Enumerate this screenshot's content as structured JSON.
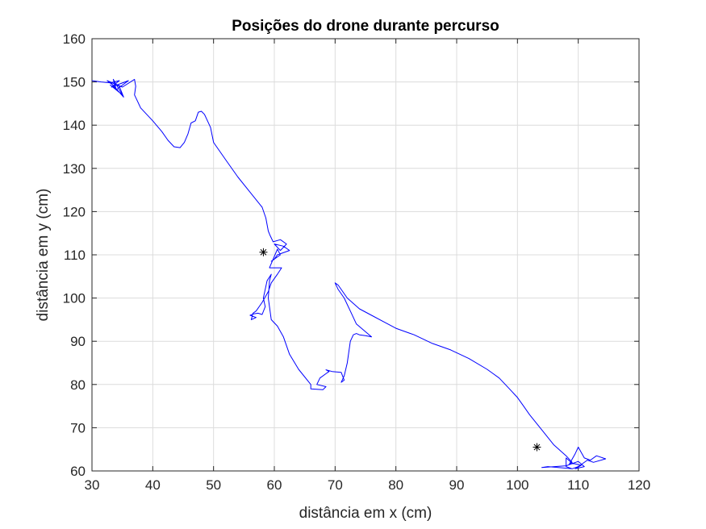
{
  "chart_data": {
    "type": "line",
    "title": "Posições do drone durante percurso",
    "xlabel": "distância em x (cm)",
    "ylabel": "distância em y (cm)",
    "xlim": [
      30,
      120
    ],
    "ylim": [
      60,
      160
    ],
    "xticks": [
      "30",
      "40",
      "50",
      "60",
      "70",
      "80",
      "90",
      "100",
      "110",
      "120"
    ],
    "yticks": [
      "60",
      "70",
      "80",
      "90",
      "100",
      "110",
      "120",
      "130",
      "140",
      "150",
      "160"
    ],
    "grid": true,
    "colors": {
      "path": "#0000ff",
      "marker": "#000000",
      "grid": "#dcdcdc",
      "axes": "#262626"
    },
    "series": [
      {
        "x": [
          30.0,
          31.5,
          33.0,
          34.5,
          33.2,
          36.0,
          34.0,
          33.5,
          35.0,
          33.0,
          34.0,
          33.0,
          34.5,
          35.2,
          33.5,
          32.5,
          35.0,
          37.0,
          37.2,
          37.0,
          37.5,
          38.0,
          40.0,
          41.5,
          42.5,
          43.5,
          44.5,
          45.2,
          45.8,
          46.3,
          47.0,
          47.5,
          48.0,
          48.5,
          49.5,
          50.0,
          52.0,
          54.0,
          56.0,
          58.0,
          58.6,
          59.0,
          59.3,
          59.8,
          61.0,
          62.0,
          61.0,
          60.0,
          61.5,
          62.5,
          60.5,
          60.0,
          59.5,
          61.0,
          60.5,
          59.2,
          61.2,
          60.5,
          59.5,
          59.0,
          58.0,
          57.0,
          56.5,
          56.2,
          57.0,
          56.0,
          56.5,
          57.3,
          58.0,
          58.5,
          58.2,
          58.8,
          59.5,
          59.2,
          59.0,
          59.5,
          60.5,
          61.5,
          62.5,
          64.0,
          66.0,
          66.0,
          68.0,
          68.5,
          67.0,
          67.5,
          68.5,
          69.0,
          68.5,
          69.5,
          71.0,
          71.5,
          71.0,
          71.5,
          72.0,
          72.5,
          73.0,
          73.5,
          74.0,
          75.0,
          76.0,
          73.5,
          72.5,
          71.5,
          70.5,
          70.0,
          70.5,
          72.0,
          74.0,
          76.0,
          78.0,
          80.0,
          83.0,
          86.0,
          89.0,
          92.0,
          95.0,
          96.0,
          97.0,
          98.0,
          99.0,
          100.0,
          101.0,
          102.0,
          104.0,
          106.0,
          108.0,
          109.0,
          108.5,
          109.5,
          110.0,
          111.0,
          112.0,
          113.0,
          114.5,
          112.5,
          111.5,
          110.0,
          109.0,
          105.0,
          104.0,
          108.0,
          110.0,
          111.0,
          109.5,
          110.5,
          109.0,
          108.0,
          108.0,
          109.0
        ],
        "y": [
          150.3,
          150.0,
          149.8,
          150.3,
          148.8,
          150.3,
          148.2,
          150.6,
          147.0,
          149.3,
          148.3,
          150.0,
          149.0,
          146.5,
          149.2,
          150.3,
          148.8,
          150.6,
          149.0,
          147.0,
          145.5,
          144.0,
          141.0,
          138.5,
          136.5,
          135.0,
          134.8,
          136.0,
          138.0,
          140.5,
          141.0,
          143.0,
          143.2,
          142.5,
          139.5,
          136.0,
          132.0,
          128.0,
          124.5,
          121.0,
          118.5,
          115.5,
          114.5,
          113.0,
          113.5,
          112.5,
          111.0,
          112.5,
          112.0,
          111.0,
          110.0,
          109.0,
          108.5,
          110.0,
          111.3,
          107.0,
          107.0,
          105.5,
          103.5,
          101.5,
          99.0,
          97.0,
          96.5,
          95.0,
          95.5,
          96.0,
          96.3,
          96.5,
          96.2,
          98.0,
          100.0,
          104.0,
          105.5,
          104.0,
          100.0,
          95.0,
          93.5,
          91.0,
          87.0,
          83.5,
          80.0,
          79.0,
          78.8,
          79.5,
          80.0,
          81.5,
          82.5,
          83.0,
          83.4,
          83.0,
          82.8,
          81.0,
          80.5,
          82.0,
          85.0,
          90.0,
          91.5,
          91.8,
          91.5,
          91.3,
          91.0,
          94.0,
          97.0,
          100.0,
          102.0,
          103.5,
          103.0,
          100.0,
          97.5,
          96.0,
          94.5,
          93.0,
          91.5,
          89.5,
          88.0,
          86.0,
          83.5,
          82.5,
          81.5,
          80.0,
          78.5,
          77.0,
          75.0,
          73.0,
          69.5,
          66.0,
          63.5,
          62.0,
          61.5,
          64.0,
          65.5,
          63.0,
          62.5,
          63.5,
          62.8,
          62.0,
          62.5,
          61.0,
          60.5,
          61.0,
          60.8,
          61.2,
          62.2,
          61.0,
          60.5,
          61.3,
          61.8,
          63.0,
          61.0,
          60.5
        ]
      }
    ],
    "markers": [
      {
        "x": 58.2,
        "y": 110.6,
        "symbol": "*"
      },
      {
        "x": 103.2,
        "y": 65.5,
        "symbol": "*"
      }
    ]
  }
}
